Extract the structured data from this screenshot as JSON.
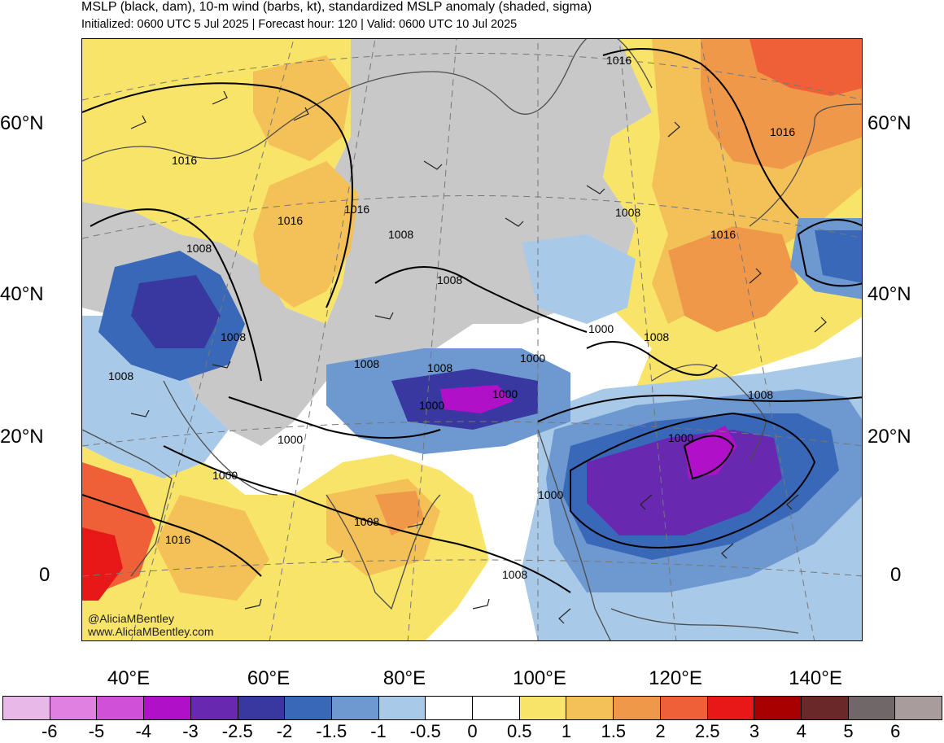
{
  "header": {
    "title": "MSLP (black, dam), 10-m wind (barbs, kt), standardized MSLP anomaly (shaded, sigma)",
    "subtitle": "Initialized: 0600 UTC 5 Jul 2025 | Forecast hour: 120 | Valid: 0600 UTC 10 Jul 2025"
  },
  "map": {
    "latitude_labels": [
      "60°N",
      "40°N",
      "20°N",
      "0"
    ],
    "longitude_labels": [
      "40°E",
      "60°E",
      "80°E",
      "100°E",
      "120°E",
      "140°E"
    ],
    "isobar_labels": [
      "1016",
      "1016",
      "1016",
      "1016",
      "1016",
      "1016",
      "1016",
      "1008",
      "1008",
      "1008",
      "1008",
      "1008",
      "1008",
      "1008",
      "1008",
      "1008",
      "1008",
      "1000",
      "1000",
      "1000",
      "1000",
      "1000",
      "1000",
      "1000",
      "1000",
      "1008",
      "1008"
    ],
    "credit_line_1": "@AliciaMBentley",
    "credit_line_2": "www.AliciaMBentley.com",
    "colors": {
      "land_gray": "#c8c8c8",
      "ocean_white": "#ffffff",
      "coastline": "#4d4d4d",
      "isobar": "#000000"
    }
  },
  "colorbar": {
    "colors": [
      "#e8b8e8",
      "#e080e0",
      "#d050d8",
      "#b010c8",
      "#6828b0",
      "#3838a0",
      "#3a68b8",
      "#6d98d0",
      "#a8cae8",
      "#ffffff",
      "#ffffff",
      "#f8e468",
      "#f4c058",
      "#f0984a",
      "#f06038",
      "#e81818",
      "#a80000",
      "#6a2828",
      "#706868",
      "#a89c9c"
    ],
    "labels": [
      "-6",
      "-5",
      "-4",
      "-3",
      "-2.5",
      "-2",
      "-1.5",
      "-1",
      "-0.5",
      "0",
      "0.5",
      "1",
      "1.5",
      "2",
      "2.5",
      "3",
      "4",
      "5",
      "6"
    ]
  }
}
